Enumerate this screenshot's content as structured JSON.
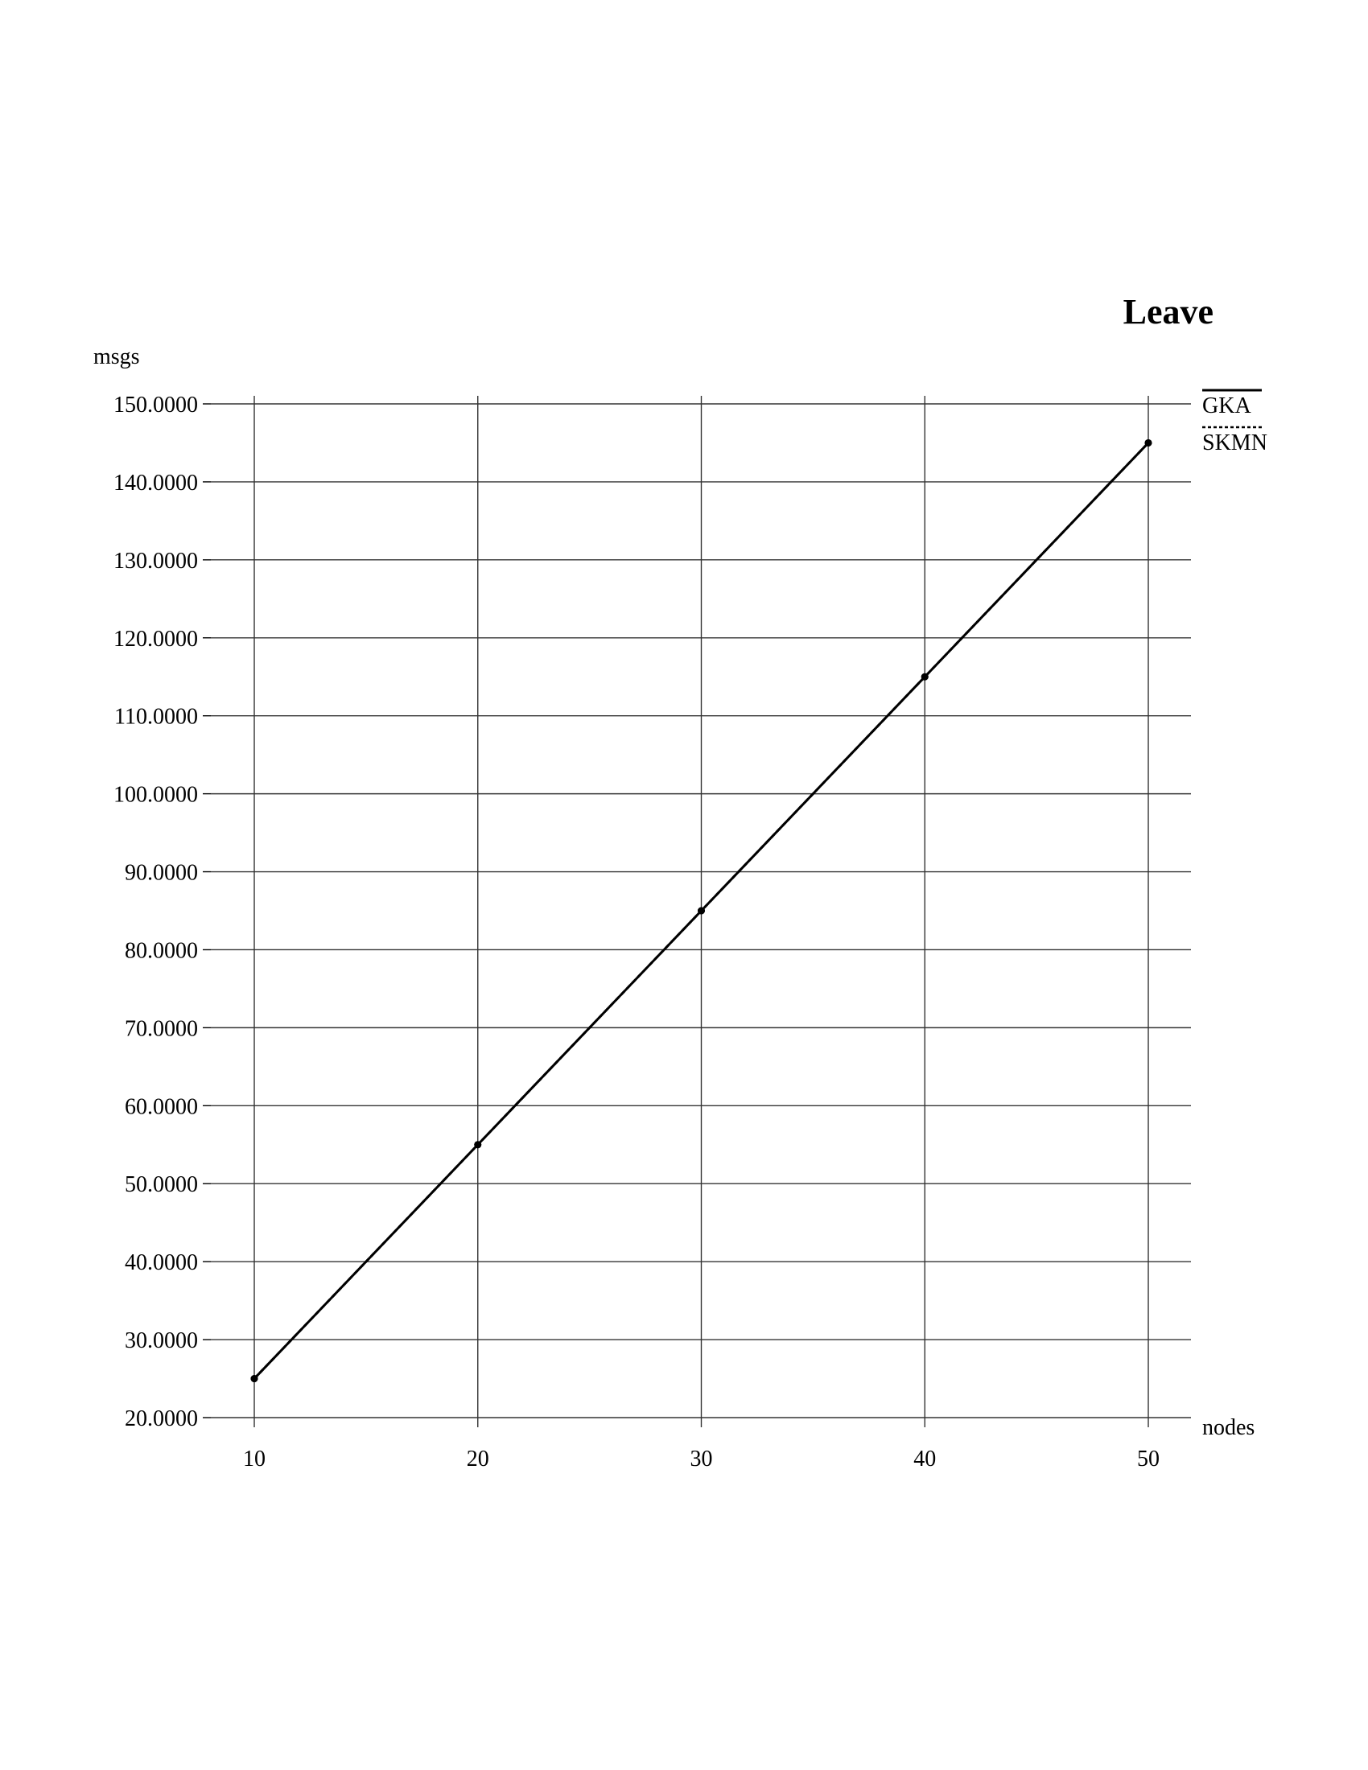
{
  "chart_data": {
    "type": "line",
    "title": "Leave",
    "xlabel": "nodes",
    "ylabel": "msgs",
    "x": [
      10,
      20,
      30,
      40,
      50
    ],
    "xlim": [
      8,
      52
    ],
    "ylim": [
      20,
      150
    ],
    "x_ticks": [
      "10",
      "20",
      "30",
      "40",
      "50"
    ],
    "y_ticks": [
      "20.0000",
      "30.0000",
      "40.0000",
      "50.0000",
      "60.0000",
      "70.0000",
      "80.0000",
      "90.0000",
      "100.0000",
      "110.0000",
      "120.0000",
      "130.0000",
      "140.0000",
      "150.0000"
    ],
    "y_tick_values": [
      20,
      30,
      40,
      50,
      60,
      70,
      80,
      90,
      100,
      110,
      120,
      130,
      140,
      150
    ],
    "grid": true,
    "legend_position": "top-right",
    "series": [
      {
        "name": "GKA",
        "values": [
          25,
          55,
          85,
          115,
          145
        ],
        "line_style": "solid",
        "color": "#000000"
      },
      {
        "name": "SKMN",
        "values": [
          25,
          55,
          85,
          115,
          145
        ],
        "line_style": "dashed",
        "color": "#000000"
      }
    ]
  }
}
